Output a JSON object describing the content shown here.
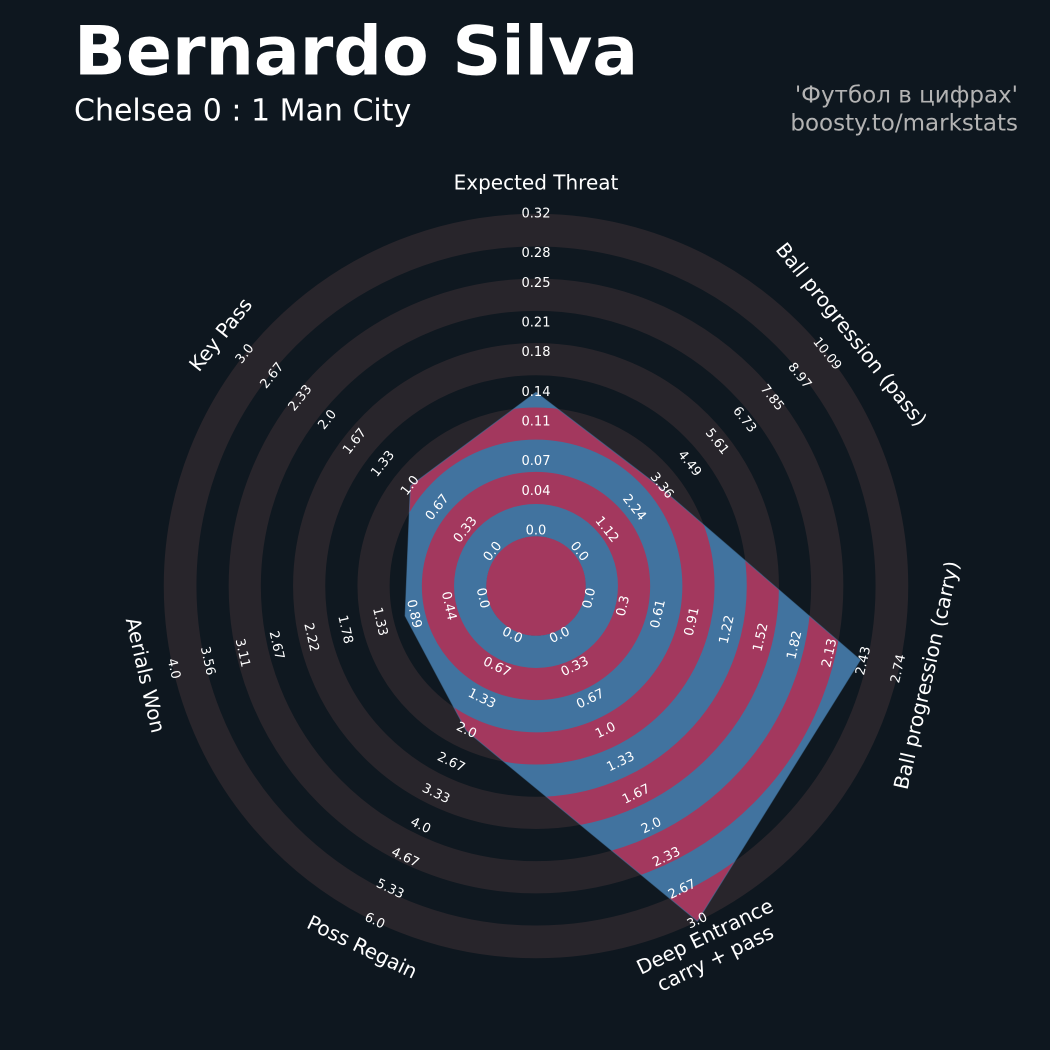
{
  "chart_data": {
    "type": "radar",
    "title": "Bernardo Silva",
    "subtitle": "Chelsea 0 : 1 Man City",
    "credits": [
      "'Футбол в цифрах'",
      "boosty.to/markstats"
    ],
    "categories": [
      "Expected Threat",
      "Ball progression (pass)",
      "Ball progression (carry)",
      "Deep Entrance\ncarry + pass",
      "Poss Regain",
      "Aerials Won",
      "Key Pass"
    ],
    "ticks": [
      [
        {
          "value": 0,
          "label": "0.0"
        },
        0.04,
        0.07,
        0.11,
        0.14,
        0.18,
        0.21,
        0.25,
        0.28,
        0.32
      ],
      [
        {
          "value": 0,
          "label": "0.0"
        },
        1.12,
        2.24,
        3.36,
        4.49,
        5.61,
        6.73,
        7.85,
        8.97,
        10.09
      ],
      [
        {
          "value": 0,
          "label": "0.0"
        },
        0.3,
        0.61,
        0.91,
        1.22,
        1.52,
        1.82,
        2.13,
        2.43,
        2.74
      ],
      [
        {
          "value": 0,
          "label": "0.0"
        },
        0.33,
        0.67,
        {
          "value": 1,
          "label": "1.0"
        },
        1.33,
        1.67,
        {
          "value": 2,
          "label": "2.0"
        },
        2.33,
        2.67,
        {
          "value": 3,
          "label": "3.0"
        }
      ],
      [
        {
          "value": 0,
          "label": "0.0"
        },
        0.67,
        1.33,
        {
          "value": 2,
          "label": "2.0"
        },
        2.67,
        3.33,
        {
          "value": 4,
          "label": "4.0"
        },
        4.67,
        5.33,
        {
          "value": 6,
          "label": "6.0"
        }
      ],
      [
        {
          "value": 0,
          "label": "0.0"
        },
        0.44,
        0.89,
        1.33,
        1.78,
        2.22,
        2.67,
        3.11,
        3.56,
        {
          "value": 4,
          "label": "4.0"
        }
      ],
      [
        {
          "value": 0,
          "label": "0.0"
        },
        0.33,
        0.67,
        {
          "value": 1,
          "label": "1.0"
        },
        1.33,
        1.67,
        {
          "value": 2,
          "label": "2.0"
        },
        2.33,
        2.67,
        {
          "value": 3,
          "label": "3.0"
        }
      ]
    ],
    "series": [
      {
        "values": [
          0.14,
          3.3,
          2.4,
          3.0,
          2.0,
          1.0,
          1.0
        ],
        "color": "#41739f",
        "alt_color": "#a3385e"
      }
    ],
    "ring_colors": [
      "#0f1820",
      "#28252b"
    ]
  }
}
